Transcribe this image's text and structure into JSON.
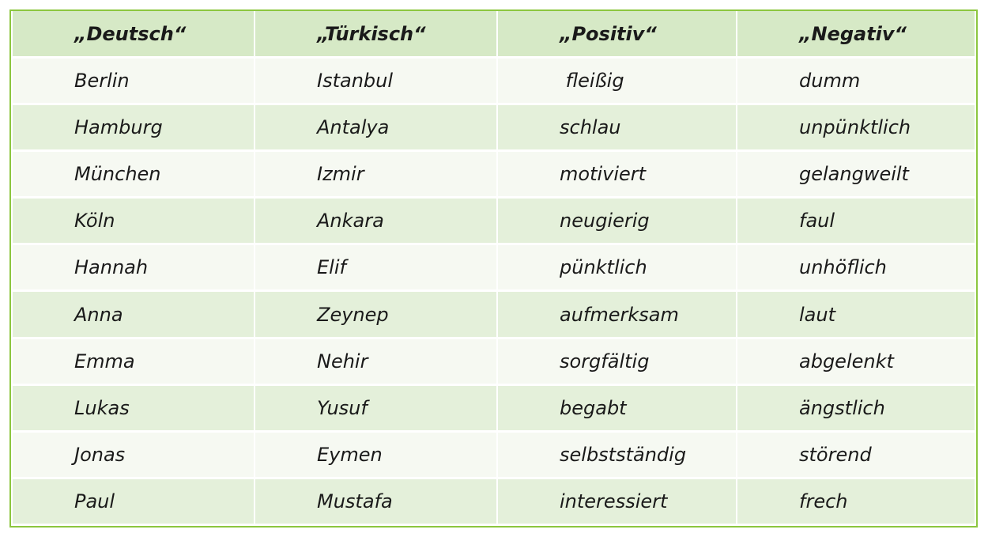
{
  "table": {
    "headers": [
      "„Deutsch“",
      "„Türkisch“",
      "„Positiv“",
      "„Negativ“"
    ],
    "rows": [
      [
        "Berlin",
        "Istanbul",
        " fleißig",
        "dumm"
      ],
      [
        "Hamburg",
        "Antalya",
        "schlau",
        "unpünktlich"
      ],
      [
        "München",
        "Izmir",
        "motiviert",
        "gelangweilt"
      ],
      [
        "Köln",
        "Ankara",
        "neugierig",
        "faul"
      ],
      [
        "Hannah",
        "Elif",
        "pünktlich",
        "unhöflich"
      ],
      [
        "Anna",
        "Zeynep",
        "aufmerksam",
        "laut"
      ],
      [
        "Emma",
        "Nehir",
        "sorgfältig",
        "abgelenkt"
      ],
      [
        "Lukas",
        "Yusuf",
        "begabt",
        "ängstlich"
      ],
      [
        "Jonas",
        "Eymen",
        "selbstständig",
        "störend"
      ],
      [
        "Paul",
        "Mustafa",
        "interessiert",
        "frech"
      ]
    ]
  },
  "colors": {
    "border": "#8cc63f",
    "header_bg": "#d6e9c6",
    "row_light": "#f6f9f2",
    "row_dark": "#e4f0da"
  }
}
